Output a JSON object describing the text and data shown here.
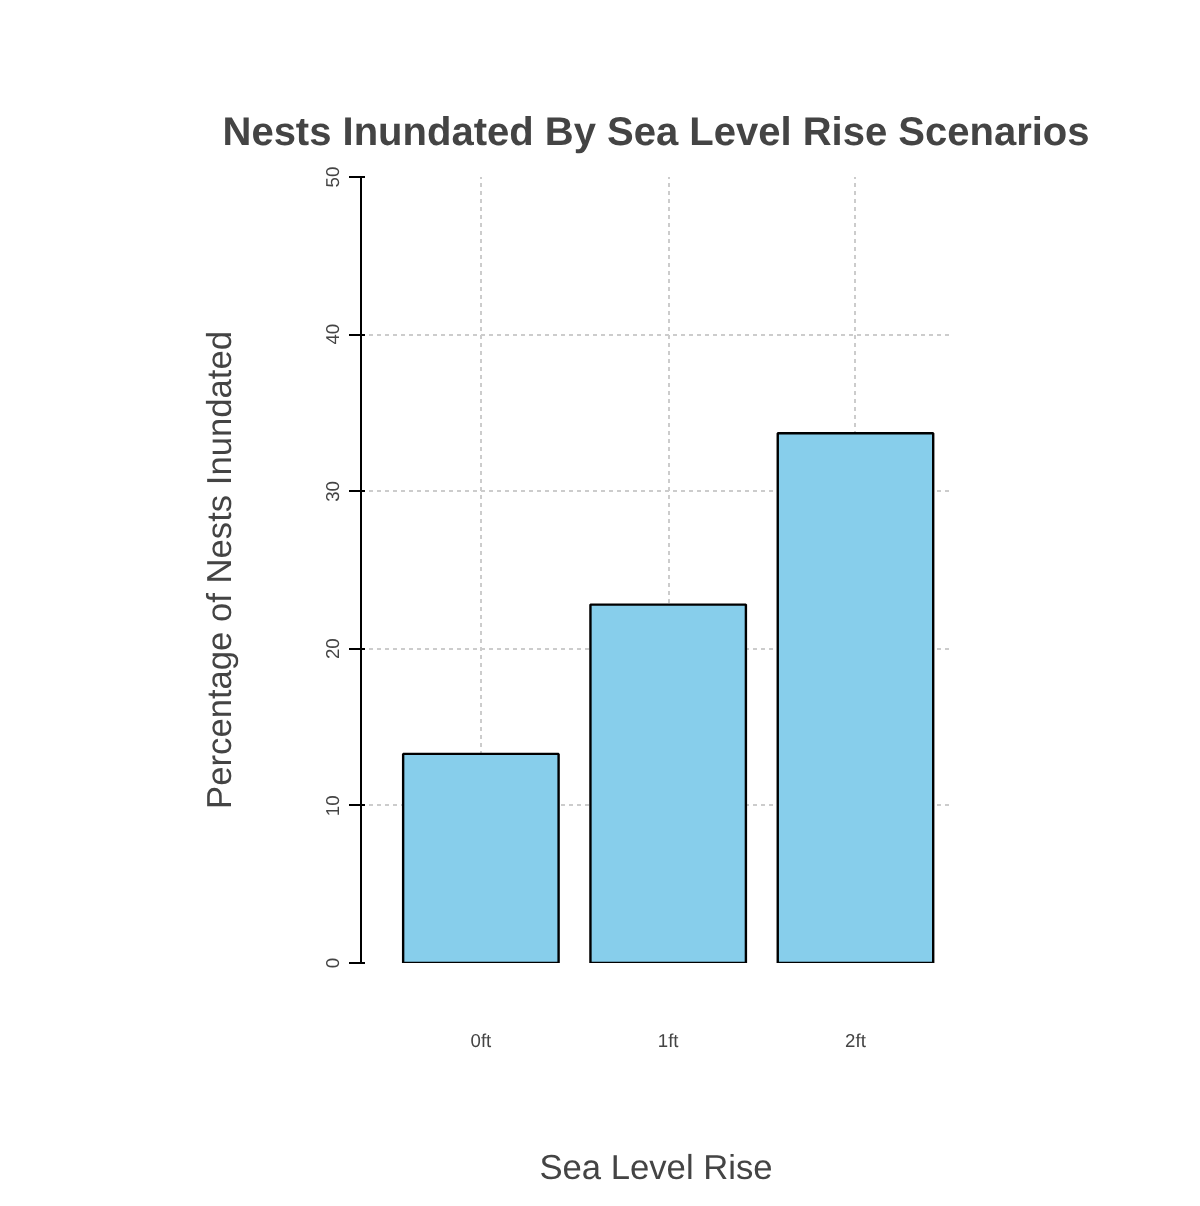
{
  "chart_data": {
    "type": "bar",
    "title": "Nests Inundated By Sea Level Rise Scenarios",
    "xlabel": "Sea Level Rise",
    "ylabel": "Percentage of Nests Inundated",
    "categories": [
      "0ft",
      "1ft",
      "2ft"
    ],
    "values": [
      13.3,
      22.8,
      33.7
    ],
    "color": "#87ceeb",
    "ylim": [
      0,
      50
    ],
    "yticks": [
      0,
      10,
      20,
      30,
      40,
      50
    ],
    "grid": true
  }
}
